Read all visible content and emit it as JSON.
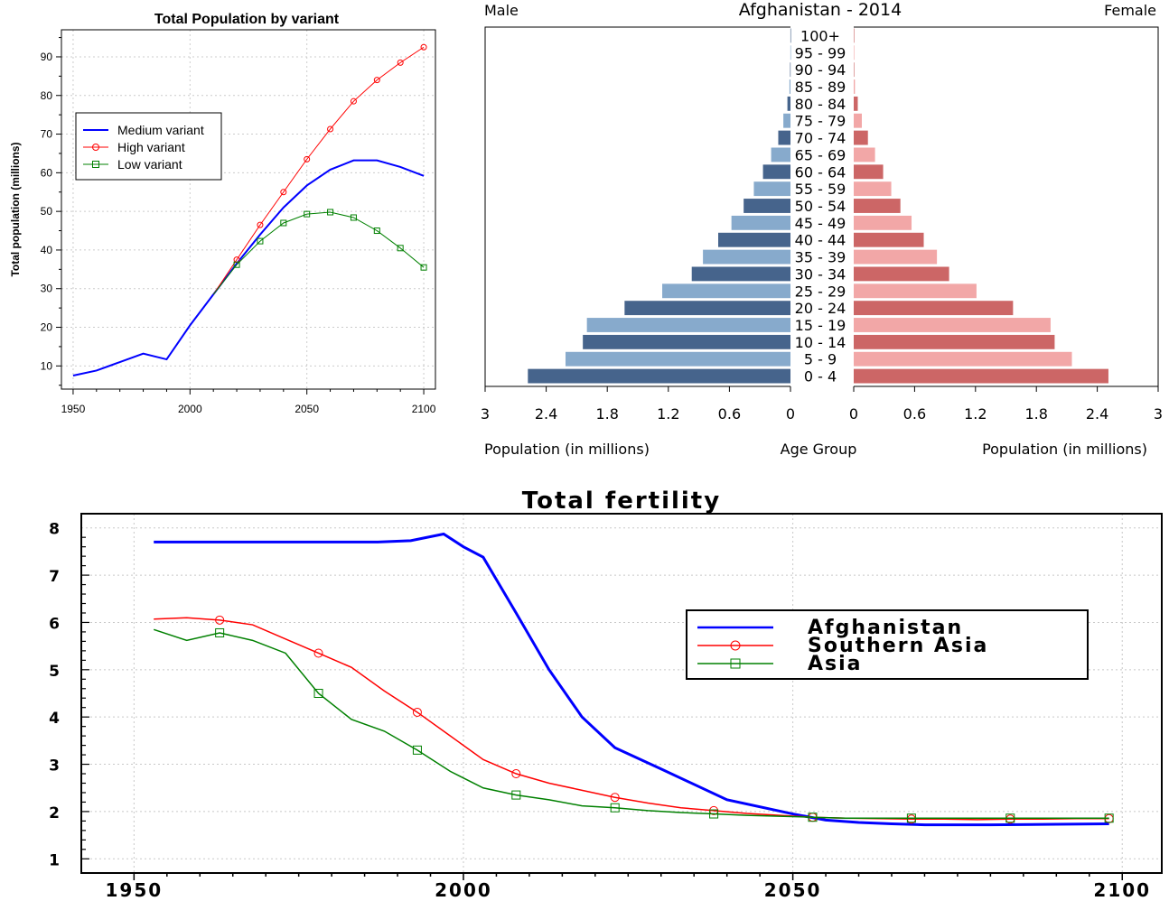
{
  "chart_data": [
    {
      "type": "line",
      "title": "Total Population by variant",
      "xlabel": "",
      "ylabel": "Total population (millions)",
      "xlim": [
        1945,
        2105
      ],
      "ylim": [
        4,
        97
      ],
      "x_ticks": [
        1950,
        2000,
        2050,
        2100
      ],
      "y_ticks": [
        10,
        20,
        30,
        40,
        50,
        60,
        70,
        80,
        90
      ],
      "grid": true,
      "legend_position": "top-left",
      "series": [
        {
          "name": "Medium variant",
          "color": "#0000ff",
          "marker": "none",
          "x": [
            1950,
            1960,
            1970,
            1980,
            1990,
            2000,
            2010,
            2020,
            2030,
            2040,
            2050,
            2060,
            2070,
            2080,
            2090,
            2100
          ],
          "y": [
            7.5,
            8.8,
            11,
            13.2,
            11.7,
            20.5,
            28.5,
            36.5,
            44,
            51,
            56.7,
            60.8,
            63.2,
            63.2,
            61.5,
            59.2
          ]
        },
        {
          "name": "High variant",
          "color": "#ff0000",
          "marker": "circle",
          "x": [
            2010,
            2020,
            2030,
            2040,
            2050,
            2060,
            2070,
            2080,
            2090,
            2100
          ],
          "y": [
            28.5,
            37.5,
            46.5,
            55,
            63.5,
            71.3,
            78.5,
            84,
            88.5,
            92.5
          ]
        },
        {
          "name": "Low variant",
          "color": "#008000",
          "marker": "square",
          "x": [
            2010,
            2020,
            2030,
            2040,
            2050,
            2060,
            2070,
            2080,
            2090,
            2100
          ],
          "y": [
            28.5,
            36.2,
            42.3,
            47,
            49.3,
            49.8,
            48.4,
            45,
            40.5,
            35.5
          ]
        }
      ]
    },
    {
      "type": "bar",
      "subtype": "population-pyramid",
      "title": "Afghanistan - 2014",
      "left_label": "Male",
      "right_label": "Female",
      "xlabel_left": "Population (in millions)",
      "xlabel_center": "Age Group",
      "xlabel_right": "Population (in millions)",
      "xlim": [
        0,
        3
      ],
      "x_ticks": [
        "3",
        "2.4",
        "1.8",
        "1.2",
        "0.6",
        "0"
      ],
      "x_ticks_right": [
        "0",
        "0.6",
        "1.2",
        "1.8",
        "2.4",
        "3"
      ],
      "categories": [
        "0 - 4",
        "5 - 9",
        "10 - 14",
        "15 - 19",
        "20 - 24",
        "25 - 29",
        "30 - 34",
        "35 - 39",
        "40 - 44",
        "45 - 49",
        "50 - 54",
        "55 - 59",
        "60 - 64",
        "65 - 69",
        "70 - 74",
        "75 - 79",
        "80 - 84",
        "85 - 89",
        "90 - 94",
        "95 - 99",
        "100+"
      ],
      "series": [
        {
          "name": "Male",
          "colors": [
            "#46648c",
            "#87aacc"
          ],
          "values": [
            2.58,
            2.21,
            2.04,
            2.0,
            1.63,
            1.26,
            0.97,
            0.86,
            0.71,
            0.58,
            0.46,
            0.36,
            0.27,
            0.19,
            0.12,
            0.07,
            0.03,
            0.01,
            0.004,
            0.001,
            0.0005
          ]
        },
        {
          "name": "Female",
          "colors": [
            "#cc6666",
            "#f2a7a7"
          ],
          "values": [
            2.51,
            2.15,
            1.98,
            1.94,
            1.57,
            1.21,
            0.94,
            0.82,
            0.69,
            0.57,
            0.46,
            0.37,
            0.29,
            0.21,
            0.14,
            0.08,
            0.04,
            0.012,
            0.005,
            0.001,
            0.0005
          ]
        }
      ]
    },
    {
      "type": "line",
      "title": "Total fertility",
      "xlabel": "",
      "ylabel": "",
      "xlim": [
        1942,
        2106
      ],
      "ylim": [
        0.7,
        8.3
      ],
      "x_ticks": [
        1950,
        2000,
        2050,
        2100
      ],
      "y_ticks": [
        1,
        2,
        3,
        4,
        5,
        6,
        7,
        8
      ],
      "grid": true,
      "legend_position": "right",
      "series": [
        {
          "name": "Afghanistan",
          "color": "#0000ff",
          "marker": "none",
          "x": [
            1953,
            1960,
            1970,
            1980,
            1987,
            1992,
            1997,
            2000,
            2003,
            2008,
            2013,
            2018,
            2023,
            2030,
            2040,
            2050,
            2055,
            2060,
            2065,
            2070,
            2080,
            2090,
            2098
          ],
          "y": [
            7.7,
            7.7,
            7.7,
            7.7,
            7.7,
            7.73,
            7.87,
            7.6,
            7.38,
            6.2,
            5.0,
            4.0,
            3.35,
            2.9,
            2.25,
            1.95,
            1.82,
            1.77,
            1.74,
            1.72,
            1.72,
            1.73,
            1.74
          ]
        },
        {
          "name": "Southern Asia",
          "color": "#ff0000",
          "marker": "circle",
          "x": [
            1953,
            1958,
            1963,
            1968,
            1973,
            1978,
            1983,
            1988,
            1993,
            1998,
            2003,
            2008,
            2013,
            2018,
            2023,
            2028,
            2033,
            2038,
            2043,
            2048,
            2053,
            2058,
            2063,
            2068,
            2073,
            2078,
            2083,
            2088,
            2093,
            2098
          ],
          "y": [
            6.07,
            6.1,
            6.05,
            5.95,
            5.65,
            5.35,
            5.05,
            4.55,
            4.1,
            3.6,
            3.1,
            2.8,
            2.6,
            2.45,
            2.3,
            2.18,
            2.08,
            2.02,
            1.96,
            1.92,
            1.88,
            1.86,
            1.85,
            1.84,
            1.84,
            1.83,
            1.84,
            1.84,
            1.85,
            1.85
          ]
        },
        {
          "name": "Asia",
          "color": "#008000",
          "marker": "square",
          "x": [
            1953,
            1958,
            1963,
            1968,
            1973,
            1978,
            1983,
            1988,
            1993,
            1998,
            2003,
            2008,
            2013,
            2018,
            2023,
            2028,
            2033,
            2038,
            2043,
            2048,
            2053,
            2058,
            2063,
            2068,
            2073,
            2078,
            2083,
            2088,
            2093,
            2098
          ],
          "y": [
            5.85,
            5.62,
            5.78,
            5.62,
            5.35,
            4.5,
            3.95,
            3.7,
            3.3,
            2.85,
            2.5,
            2.35,
            2.25,
            2.12,
            2.08,
            2.02,
            1.98,
            1.95,
            1.92,
            1.9,
            1.88,
            1.86,
            1.86,
            1.86,
            1.86,
            1.86,
            1.86,
            1.86,
            1.86,
            1.86
          ]
        }
      ]
    }
  ]
}
